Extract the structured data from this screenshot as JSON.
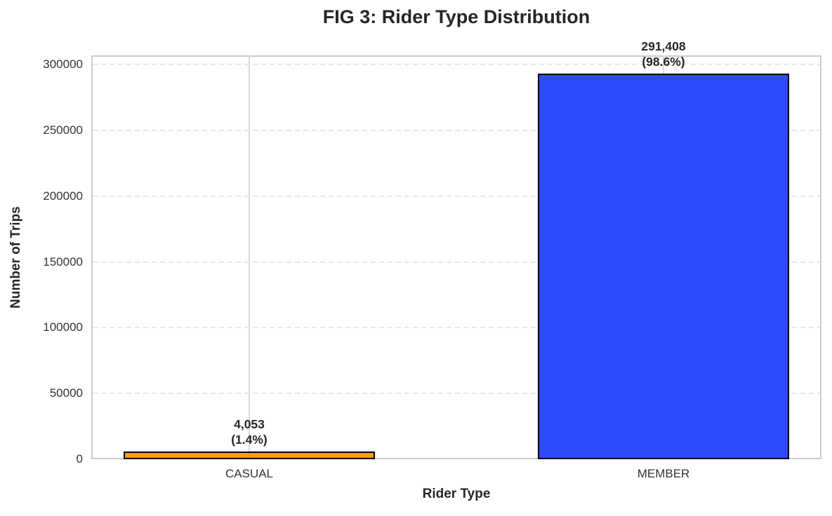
{
  "figure": {
    "background": "#ffffff"
  },
  "chart_data": {
    "type": "bar",
    "title": "FIG 3: Rider Type Distribution",
    "xlabel": "Rider Type",
    "ylabel": "Number of Trips",
    "categories": [
      "CASUAL",
      "MEMBER"
    ],
    "values": [
      4053,
      291408
    ],
    "annotations": [
      [
        "4,053",
        "(1.4%)"
      ],
      [
        "291,408",
        "(98.6%)"
      ]
    ],
    "bar_colors": [
      "#F99E0D",
      "#2D4BFA"
    ],
    "bar_edge_color": "#000000",
    "ylim": [
      0,
      307000
    ],
    "yticks": [
      0,
      50000,
      100000,
      150000,
      200000,
      250000,
      300000
    ],
    "ytick_labels": [
      "0",
      "50000",
      "100000",
      "150000",
      "200000",
      "250000",
      "300000"
    ],
    "grid": "horizontal dashed light-gray at y ticks; vertical solid light-gray at category centers",
    "legend": "none",
    "text_color": "#262626",
    "grid_color_dashed": "#e8e8e8",
    "grid_color_solid": "#d9d9d9",
    "spine_color": "#cccccc"
  }
}
